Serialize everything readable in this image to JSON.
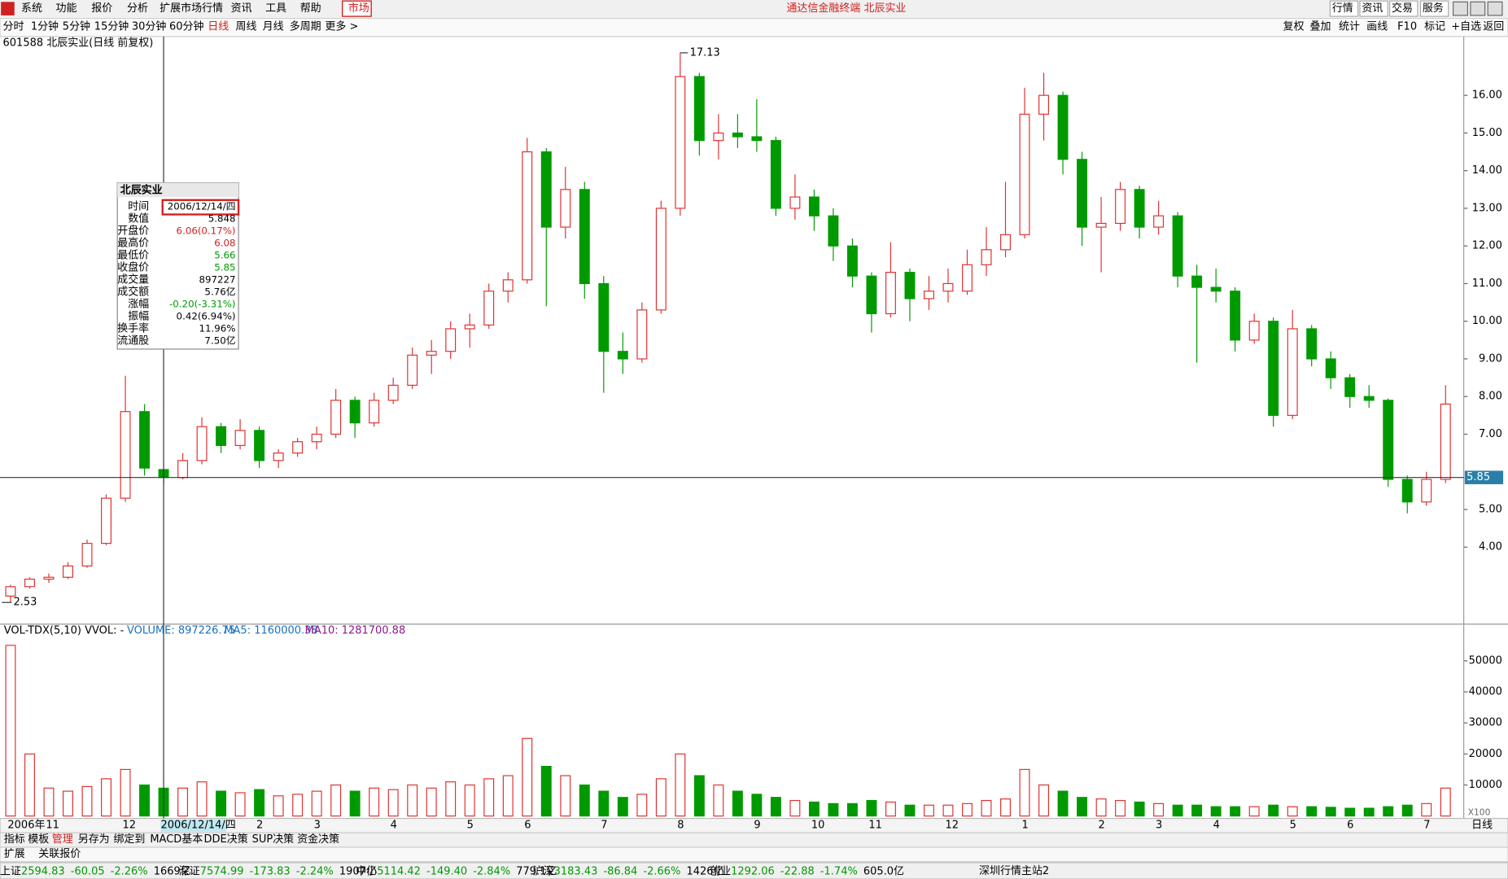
{
  "window": {
    "title": "通达信金融终端 北辰实业",
    "menu": [
      "系统",
      "功能",
      "报价",
      "分析",
      "扩展市场行情",
      "资讯",
      "工具",
      "帮助",
      "市场"
    ],
    "top_buttons": [
      "行情",
      "资讯",
      "交易",
      "服务"
    ],
    "periods": [
      "分时",
      "1分钟",
      "5分钟",
      "15分钟",
      "30分钟",
      "60分钟",
      "日线",
      "周线",
      "月线",
      "多周期",
      "更多 >"
    ],
    "tools": [
      "复权",
      "叠加",
      "统计",
      "画线",
      "F10",
      "标记",
      "+自选",
      "返回"
    ],
    "tabs": [
      "指标",
      "模板",
      "管理",
      "另存为",
      "绑定到",
      "MACD基本",
      "DDE决策",
      "SUP决策",
      "资金决策"
    ],
    "subtabs": [
      "扩展",
      "关联报价"
    ],
    "status": [
      [
        "上证",
        "2594.83",
        "-60.05",
        "-2.26%",
        "1669亿"
      ],
      [
        "深证",
        "7574.99",
        "-173.83",
        "-2.24%",
        "1907亿"
      ],
      [
        "中小",
        "5114.42",
        "-149.40",
        "-2.84%",
        "779.1亿"
      ],
      [
        "沪深",
        "3183.43",
        "-86.84",
        "-2.66%",
        "1426亿"
      ],
      [
        "创业",
        "1292.06",
        "-22.88",
        "-1.74%",
        "605.0亿"
      ]
    ],
    "server": "深圳行情主站2"
  },
  "info_panel": {
    "title": "北辰实业",
    "rows": [
      [
        "时间",
        "2006/12/14/四"
      ],
      [
        "数值",
        "5.848"
      ],
      [
        "开盘价",
        "6.06(0.17%)"
      ],
      [
        "最高价",
        "6.08"
      ],
      [
        "最低价",
        "5.66"
      ],
      [
        "收盘价",
        "5.85"
      ],
      [
        "成交量",
        "897227"
      ],
      [
        "成交额",
        "5.76亿"
      ],
      [
        "涨幅",
        "-0.20(-3.31%)"
      ],
      [
        "振幅",
        "0.42(6.94%)"
      ],
      [
        "换手率",
        "11.96%"
      ],
      [
        "流通股",
        "7.50亿"
      ]
    ]
  },
  "chart_data": {
    "type": "candlestick",
    "title": "601588 北辰实业(日线 前复权)",
    "categories": [
      "2006年",
      null,
      "11",
      null,
      null,
      null,
      "12",
      null,
      "2006/12/14/四",
      null,
      null,
      null,
      null,
      "2",
      null,
      null,
      "3",
      null,
      null,
      null,
      "4",
      null,
      null,
      null,
      "5",
      null,
      null,
      "6",
      null,
      null,
      null,
      "7",
      null,
      null,
      null,
      "8",
      null,
      null,
      null,
      "9",
      null,
      null,
      "10",
      null,
      null,
      "11",
      null,
      null,
      null,
      "12",
      null,
      null,
      null,
      "1",
      null,
      null,
      null,
      "2",
      null,
      null,
      "3",
      null,
      null,
      "4",
      null,
      null,
      null,
      "5",
      null,
      null,
      "6",
      null,
      null,
      null,
      "7",
      null
    ],
    "open": [
      2.7,
      2.95,
      3.15,
      3.2,
      3.5,
      4.1,
      5.3,
      7.6,
      6.06,
      5.85,
      6.3,
      7.2,
      6.7,
      7.1,
      6.3,
      6.5,
      6.8,
      7.0,
      7.9,
      7.3,
      7.9,
      8.3,
      9.1,
      9.2,
      9.8,
      9.9,
      10.8,
      11.1,
      14.5,
      12.5,
      13.5,
      11.0,
      9.2,
      9.0,
      10.3,
      13.0,
      16.5,
      14.8,
      15.0,
      14.9,
      14.8,
      13.0,
      13.3,
      12.8,
      12.0,
      11.2,
      10.2,
      11.3,
      10.6,
      10.8,
      10.8,
      11.5,
      11.9,
      12.3,
      15.5,
      16.0,
      14.3,
      12.5,
      12.6,
      13.5,
      12.5,
      12.8,
      11.2,
      10.9,
      10.8,
      9.5,
      10.0,
      7.5,
      9.8,
      9.0,
      8.5,
      8.0,
      7.9,
      5.8,
      5.2,
      5.8
    ],
    "high": [
      3.0,
      3.2,
      3.3,
      3.6,
      4.2,
      5.4,
      8.55,
      7.8,
      6.08,
      6.5,
      7.45,
      7.3,
      7.4,
      7.2,
      6.6,
      6.9,
      7.2,
      8.2,
      8.0,
      8.1,
      8.5,
      9.3,
      9.5,
      10.0,
      10.2,
      11.0,
      11.3,
      14.87,
      14.6,
      14.1,
      13.7,
      11.2,
      9.7,
      10.5,
      13.2,
      17.13,
      16.6,
      15.5,
      15.5,
      15.9,
      14.9,
      13.9,
      13.5,
      13.0,
      12.2,
      11.3,
      12.1,
      11.4,
      11.2,
      11.4,
      11.9,
      12.5,
      13.7,
      16.2,
      16.6,
      16.1,
      14.5,
      13.3,
      13.7,
      13.6,
      13.2,
      12.9,
      11.5,
      11.4,
      10.9,
      10.2,
      10.1,
      10.3,
      9.9,
      9.2,
      8.6,
      8.3,
      7.95,
      5.9,
      6.0,
      8.3
    ],
    "low": [
      2.53,
      2.9,
      3.05,
      3.15,
      3.45,
      4.05,
      5.2,
      5.9,
      5.66,
      5.8,
      6.2,
      6.5,
      6.6,
      6.1,
      6.1,
      6.4,
      6.6,
      6.9,
      6.9,
      7.2,
      7.8,
      8.2,
      8.6,
      9.0,
      9.3,
      9.8,
      10.5,
      11.0,
      10.4,
      12.2,
      10.6,
      8.1,
      8.6,
      8.9,
      10.2,
      12.8,
      14.4,
      14.3,
      14.6,
      14.5,
      12.8,
      12.7,
      12.4,
      11.6,
      10.9,
      9.7,
      10.1,
      10.0,
      10.3,
      10.5,
      10.7,
      11.2,
      11.7,
      12.2,
      14.8,
      13.9,
      12.0,
      11.3,
      12.4,
      12.2,
      12.3,
      10.9,
      8.9,
      10.5,
      9.2,
      9.4,
      7.2,
      7.4,
      8.8,
      8.2,
      7.7,
      7.7,
      5.6,
      4.9,
      5.1,
      5.7
    ],
    "close": [
      2.95,
      3.15,
      3.2,
      3.5,
      4.1,
      5.3,
      7.6,
      6.1,
      5.85,
      6.3,
      7.2,
      6.7,
      7.1,
      6.3,
      6.5,
      6.8,
      7.0,
      7.9,
      7.3,
      7.9,
      8.3,
      9.1,
      9.2,
      9.8,
      9.9,
      10.8,
      11.1,
      14.5,
      12.5,
      13.5,
      11.0,
      9.2,
      9.0,
      10.3,
      13.0,
      16.5,
      14.8,
      15.0,
      14.9,
      14.8,
      13.0,
      13.3,
      12.8,
      12.0,
      11.2,
      10.2,
      11.3,
      10.6,
      10.8,
      11.0,
      11.5,
      11.9,
      12.3,
      15.5,
      16.0,
      14.3,
      12.5,
      12.6,
      13.5,
      12.5,
      12.8,
      11.2,
      10.9,
      10.8,
      9.5,
      10.0,
      7.5,
      9.8,
      9.0,
      8.5,
      8.0,
      7.9,
      5.8,
      5.2,
      5.8,
      7.8
    ],
    "up_color": "#e03030",
    "down_color": "#009a00",
    "ylim": [
      1.98,
      17.46
    ],
    "yticks": [
      {
        "value": 4,
        "label": "4.00"
      },
      {
        "value": 5,
        "label": "5.00"
      },
      {
        "value": 7,
        "label": "7.00"
      },
      {
        "value": 8,
        "label": "8.00"
      },
      {
        "value": 9,
        "label": "9.00"
      },
      {
        "value": 10,
        "label": "10.00"
      },
      {
        "value": 11,
        "label": "11.00"
      },
      {
        "value": 12,
        "label": "12.00"
      },
      {
        "value": 13,
        "label": "13.00"
      },
      {
        "value": 14,
        "label": "14.00"
      },
      {
        "value": 15,
        "label": "15.00"
      },
      {
        "value": 16,
        "label": "16.00"
      }
    ],
    "high_mark": {
      "value": 17.13,
      "label": "17.13"
    },
    "low_mark": {
      "value": 2.53,
      "label": "2.53"
    },
    "cursor": {
      "value": 5.85,
      "label": "5.85"
    },
    "volume": {
      "title": "VOL-TDX(5,10) VVOL: -",
      "legend": [
        "VOLUME: 897226.75",
        "MA5: 1160000.38",
        "MA10: 1281700.88"
      ],
      "unit": "X100",
      "values": [
        55000,
        20000,
        9000,
        8000,
        9500,
        12000,
        15000,
        10000,
        8972.27,
        9000,
        11000,
        8000,
        7500,
        8500,
        6500,
        7000,
        8000,
        10000,
        8000,
        9000,
        8500,
        10000,
        9000,
        11000,
        10000,
        12000,
        13000,
        25000,
        16000,
        13000,
        10000,
        8000,
        6000,
        7000,
        12000,
        20000,
        13000,
        10000,
        8000,
        7000,
        6000,
        5000,
        4500,
        4000,
        4000,
        5000,
        4500,
        3500,
        3500,
        3500,
        4000,
        5000,
        5500,
        15000,
        10000,
        8000,
        6000,
        5500,
        5000,
        4500,
        4000,
        3500,
        3500,
        3000,
        3000,
        3000,
        3500,
        3000,
        3000,
        2800,
        2500,
        2500,
        3000,
        3500,
        4000,
        9000
      ],
      "ylim": [
        0,
        57800
      ],
      "yticks": [
        10000,
        20000,
        30000,
        40000,
        50000
      ]
    },
    "period_label": "日线"
  }
}
